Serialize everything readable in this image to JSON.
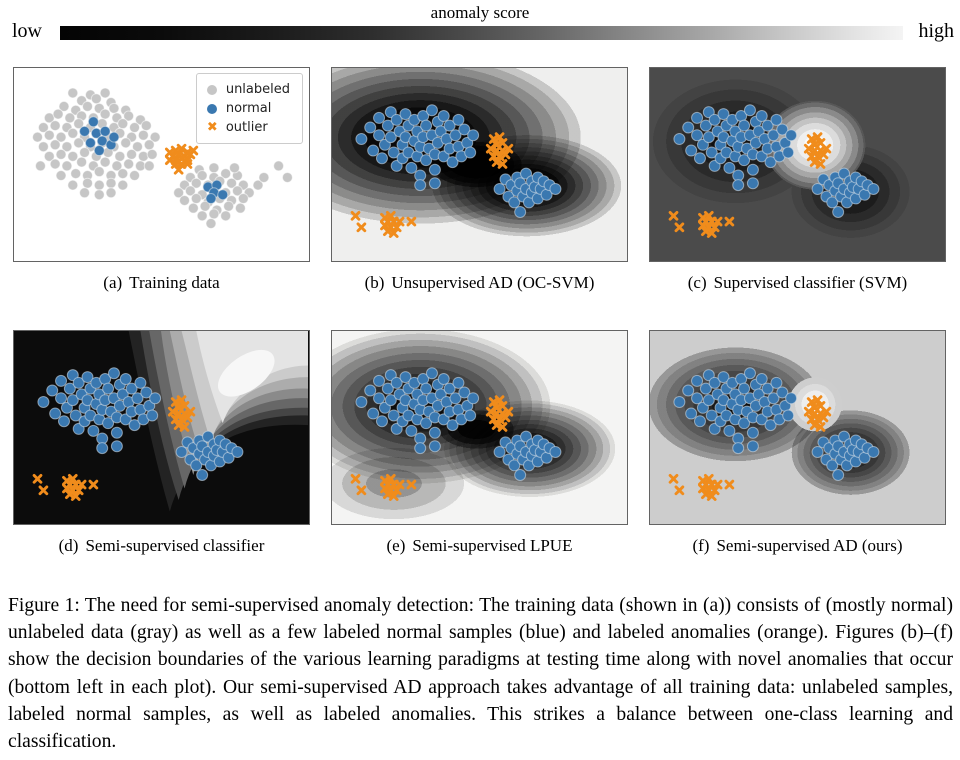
{
  "colorbar": {
    "title": "anomaly score",
    "low_label": "low",
    "high_label": "high"
  },
  "legend": {
    "items": [
      {
        "label": "unlabeled",
        "marker": "circle",
        "color": "#c6c6c6"
      },
      {
        "label": "normal",
        "marker": "circle",
        "color": "#3a78b0"
      },
      {
        "label": "outlier",
        "marker": "x",
        "color": "#f08c1c",
        "glyph": "✖"
      }
    ]
  },
  "colors": {
    "unlabeled_fill": "#c6c6c6",
    "unlabeled_edge": "#ffffff",
    "normal_fill": "#3a78b0",
    "normal_edge": "#d9e2ea",
    "outlier": "#f08c1c",
    "plot_border": "#636363",
    "contour_low": "#0b0b0b",
    "contour_high": "#f4f4f4"
  },
  "figure": {
    "plots": [
      {
        "id": "a",
        "prefix": "(a)",
        "title": "Training data",
        "data": "train"
      },
      {
        "id": "b",
        "prefix": "(b)",
        "title": "Unsupervised AD (OC-SVM)",
        "data": "test"
      },
      {
        "id": "c",
        "prefix": "(c)",
        "title": "Supervised classifier (SVM)",
        "data": "test"
      },
      {
        "id": "d",
        "prefix": "(d)",
        "title": "Semi-supervised classifier",
        "data": "test"
      },
      {
        "id": "e",
        "prefix": "(e)",
        "title": "Semi-supervised LPUE",
        "data": "test"
      },
      {
        "id": "f",
        "prefix": "(f)",
        "title": "Semi-supervised AD (ours)",
        "data": "test"
      }
    ]
  },
  "chart_data": {
    "type": "scatter",
    "axes": "hidden",
    "train": {
      "unlabeled": [
        [
          20,
          13
        ],
        [
          26,
          14
        ],
        [
          31,
          13
        ],
        [
          23,
          17
        ],
        [
          28,
          16
        ],
        [
          33,
          18
        ],
        [
          17,
          20
        ],
        [
          21,
          22
        ],
        [
          25,
          20
        ],
        [
          29,
          21
        ],
        [
          34,
          21
        ],
        [
          38,
          22
        ],
        [
          12,
          26
        ],
        [
          15,
          24
        ],
        [
          19,
          26
        ],
        [
          23,
          25
        ],
        [
          27,
          26
        ],
        [
          31,
          24
        ],
        [
          35,
          26
        ],
        [
          39,
          25
        ],
        [
          43,
          27
        ],
        [
          10,
          31
        ],
        [
          14,
          30
        ],
        [
          18,
          31
        ],
        [
          22,
          29
        ],
        [
          26,
          31
        ],
        [
          30,
          29
        ],
        [
          34,
          31
        ],
        [
          37,
          29
        ],
        [
          41,
          31
        ],
        [
          45,
          30
        ],
        [
          8,
          36
        ],
        [
          12,
          35
        ],
        [
          16,
          36
        ],
        [
          20,
          34
        ],
        [
          24,
          36
        ],
        [
          28,
          34
        ],
        [
          32,
          36
        ],
        [
          36,
          34
        ],
        [
          40,
          36
        ],
        [
          44,
          35
        ],
        [
          48,
          36
        ],
        [
          10,
          41
        ],
        [
          14,
          40
        ],
        [
          18,
          41
        ],
        [
          22,
          39
        ],
        [
          26,
          41
        ],
        [
          30,
          39
        ],
        [
          34,
          41
        ],
        [
          38,
          39
        ],
        [
          42,
          41
        ],
        [
          46,
          40
        ],
        [
          12,
          46
        ],
        [
          16,
          45
        ],
        [
          20,
          46
        ],
        [
          24,
          44
        ],
        [
          28,
          46
        ],
        [
          32,
          44
        ],
        [
          36,
          46
        ],
        [
          40,
          45
        ],
        [
          44,
          46
        ],
        [
          9,
          51
        ],
        [
          14,
          50
        ],
        [
          18,
          51
        ],
        [
          23,
          49
        ],
        [
          27,
          51
        ],
        [
          31,
          49
        ],
        [
          35,
          51
        ],
        [
          39,
          50
        ],
        [
          43,
          51
        ],
        [
          16,
          56
        ],
        [
          21,
          55
        ],
        [
          25,
          56
        ],
        [
          29,
          54
        ],
        [
          33,
          56
        ],
        [
          37,
          55
        ],
        [
          41,
          56
        ],
        [
          20,
          61
        ],
        [
          25,
          60
        ],
        [
          29,
          61
        ],
        [
          33,
          60
        ],
        [
          37,
          61
        ],
        [
          24,
          65
        ],
        [
          29,
          66
        ],
        [
          33,
          65
        ],
        [
          46,
          51
        ],
        [
          47,
          45
        ],
        [
          63,
          53
        ],
        [
          68,
          52
        ],
        [
          60,
          57
        ],
        [
          64,
          56
        ],
        [
          68,
          57
        ],
        [
          72,
          55
        ],
        [
          76,
          56
        ],
        [
          58,
          61
        ],
        [
          62,
          60
        ],
        [
          66,
          61
        ],
        [
          70,
          59
        ],
        [
          74,
          60
        ],
        [
          78,
          61
        ],
        [
          56,
          65
        ],
        [
          60,
          64
        ],
        [
          64,
          66
        ],
        [
          68,
          64
        ],
        [
          72,
          65
        ],
        [
          76,
          64
        ],
        [
          80,
          65
        ],
        [
          83,
          61
        ],
        [
          58,
          69
        ],
        [
          62,
          68
        ],
        [
          66,
          70
        ],
        [
          70,
          68
        ],
        [
          74,
          69
        ],
        [
          78,
          68
        ],
        [
          61,
          73
        ],
        [
          65,
          72
        ],
        [
          69,
          74
        ],
        [
          73,
          72
        ],
        [
          77,
          73
        ],
        [
          64,
          77
        ],
        [
          68,
          76
        ],
        [
          72,
          77
        ],
        [
          67,
          81
        ],
        [
          85,
          57
        ],
        [
          75,
          52
        ],
        [
          66,
          36
        ],
        [
          73,
          37
        ],
        [
          90,
          51
        ],
        [
          93,
          57
        ]
      ],
      "normal": [
        [
          27,
          28
        ],
        [
          24,
          33
        ],
        [
          28,
          34
        ],
        [
          31,
          33
        ],
        [
          26,
          39
        ],
        [
          30,
          38
        ],
        [
          33,
          40
        ],
        [
          29,
          43
        ],
        [
          34,
          36
        ],
        [
          66,
          62
        ],
        [
          69,
          61
        ],
        [
          68,
          65
        ],
        [
          71,
          66
        ],
        [
          67,
          68
        ]
      ],
      "outlier": [
        [
          53,
          44
        ],
        [
          55,
          43
        ],
        [
          57,
          42
        ],
        [
          59,
          44
        ],
        [
          54,
          46
        ],
        [
          56,
          45
        ],
        [
          58,
          46
        ],
        [
          60,
          45
        ],
        [
          53,
          48
        ],
        [
          55,
          48
        ],
        [
          57,
          47
        ],
        [
          59,
          48
        ],
        [
          55,
          50
        ],
        [
          57,
          50
        ],
        [
          59,
          50
        ],
        [
          61,
          43
        ],
        [
          56,
          53
        ]
      ]
    },
    "test": {
      "normal": [
        [
          10,
          37
        ],
        [
          13,
          31
        ],
        [
          14,
          43
        ],
        [
          16,
          26
        ],
        [
          16,
          35
        ],
        [
          17,
          47
        ],
        [
          18,
          40
        ],
        [
          19,
          30
        ],
        [
          20,
          23
        ],
        [
          20,
          36
        ],
        [
          21,
          44
        ],
        [
          22,
          27
        ],
        [
          22,
          51
        ],
        [
          23,
          33
        ],
        [
          24,
          40
        ],
        [
          24,
          47
        ],
        [
          25,
          24
        ],
        [
          25,
          36
        ],
        [
          26,
          30
        ],
        [
          26,
          44
        ],
        [
          27,
          52
        ],
        [
          28,
          27
        ],
        [
          28,
          38
        ],
        [
          29,
          33
        ],
        [
          29,
          46
        ],
        [
          30,
          41
        ],
        [
          30,
          56
        ],
        [
          31,
          25
        ],
        [
          31,
          36
        ],
        [
          32,
          30
        ],
        [
          32,
          48
        ],
        [
          33,
          42
        ],
        [
          34,
          22
        ],
        [
          34,
          35
        ],
        [
          35,
          45
        ],
        [
          35,
          53
        ],
        [
          36,
          28
        ],
        [
          36,
          39
        ],
        [
          37,
          33
        ],
        [
          38,
          46
        ],
        [
          38,
          25
        ],
        [
          39,
          37
        ],
        [
          40,
          42
        ],
        [
          40,
          30
        ],
        [
          41,
          49
        ],
        [
          42,
          35
        ],
        [
          43,
          27
        ],
        [
          43,
          41
        ],
        [
          44,
          46
        ],
        [
          45,
          32
        ],
        [
          46,
          39
        ],
        [
          47,
          44
        ],
        [
          35,
          60
        ],
        [
          30,
          61
        ],
        [
          48,
          35
        ],
        [
          57,
          63
        ],
        [
          59,
          58
        ],
        [
          60,
          67
        ],
        [
          61,
          61
        ],
        [
          62,
          70
        ],
        [
          63,
          57
        ],
        [
          63,
          64
        ],
        [
          64,
          60
        ],
        [
          65,
          67
        ],
        [
          66,
          55
        ],
        [
          66,
          63
        ],
        [
          67,
          70
        ],
        [
          68,
          59
        ],
        [
          68,
          65
        ],
        [
          69,
          62
        ],
        [
          70,
          57
        ],
        [
          70,
          68
        ],
        [
          71,
          63
        ],
        [
          72,
          59
        ],
        [
          73,
          66
        ],
        [
          74,
          61
        ],
        [
          76,
          63
        ],
        [
          64,
          75
        ]
      ],
      "outlier": [
        [
          55,
          37
        ],
        [
          57,
          36
        ],
        [
          56,
          40
        ],
        [
          58,
          39
        ],
        [
          54,
          42
        ],
        [
          56,
          43
        ],
        [
          58,
          43
        ],
        [
          60,
          42
        ],
        [
          55,
          46
        ],
        [
          57,
          46
        ],
        [
          59,
          45
        ],
        [
          56,
          49
        ],
        [
          58,
          50
        ],
        [
          8,
          77
        ],
        [
          10,
          83
        ],
        [
          18,
          78
        ],
        [
          20,
          77
        ],
        [
          19,
          80
        ],
        [
          21,
          80
        ],
        [
          23,
          80
        ],
        [
          18,
          82
        ],
        [
          20,
          83
        ],
        [
          22,
          83
        ],
        [
          19,
          85
        ],
        [
          21,
          86
        ],
        [
          27,
          80
        ]
      ]
    }
  },
  "caption": {
    "text": "Figure 1: The need for semi-supervised anomaly detection: The training data (shown in (a)) consists of (mostly normal) unlabeled data (gray) as well as a few labeled normal samples (blue) and labeled anomalies (orange). Figures (b)–(f) show the decision boundaries of the various learning paradigms at testing time along with novel anomalies that occur (bottom left in each plot). Our semi-supervised AD approach takes advantage of all training data: unlabeled samples, labeled normal samples, as well as labeled anomalies. This strikes a balance between one-class learning and classification."
  }
}
